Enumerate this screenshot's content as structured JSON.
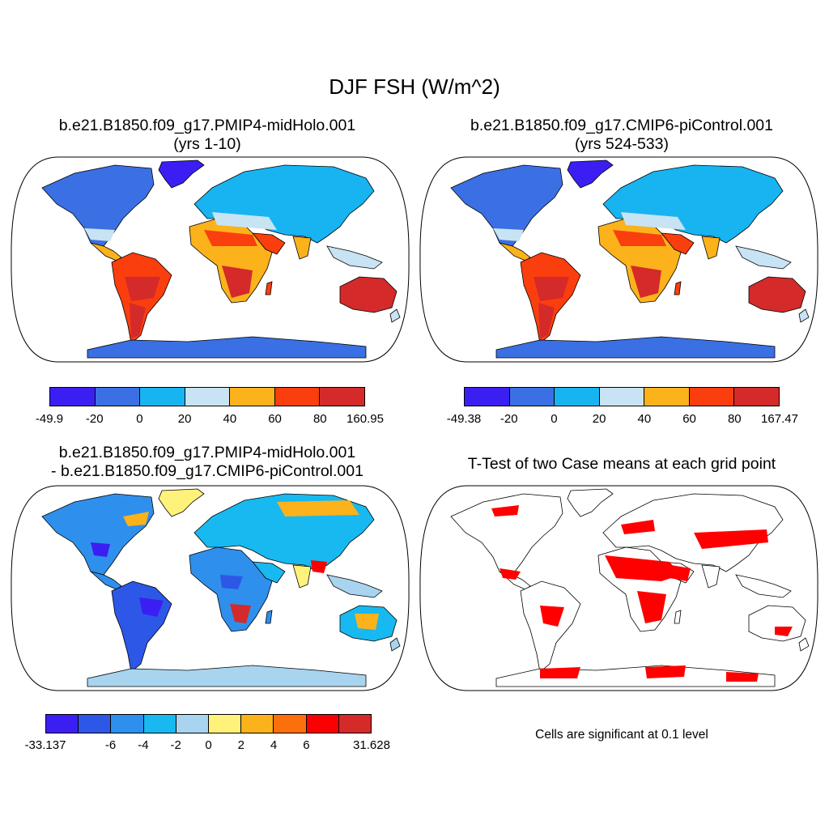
{
  "figure_title": "DJF FSH (W/m^2)",
  "panels": [
    {
      "title_line1": "b.e21.B1850.f09_g17.PMIP4-midHolo.001",
      "title_line2": "(yrs 1-10)",
      "colorbar": {
        "colors": [
          "#3b1ff2",
          "#3a70e4",
          "#17b4f1",
          "#c8e3f3",
          "#fbb21b",
          "#fb3e0d",
          "#d42a2a"
        ],
        "labels": [
          "-49.9",
          "-20",
          "0",
          "20",
          "40",
          "60",
          "80",
          "160.95"
        ]
      }
    },
    {
      "title_line1": "b.e21.B1850.f09_g17.CMIP6-piControl.001",
      "title_line2": "(yrs 524-533)",
      "colorbar": {
        "colors": [
          "#3b1ff2",
          "#3a70e4",
          "#17b4f1",
          "#c8e3f3",
          "#fbb21b",
          "#fb3e0d",
          "#d42a2a"
        ],
        "labels": [
          "-49.38",
          "-20",
          "0",
          "20",
          "40",
          "60",
          "80",
          "167.47"
        ]
      }
    },
    {
      "title_line1": "b.e21.B1850.f09_g17.PMIP4-midHolo.001",
      "title_line2": "- b.e21.B1850.f09_g17.CMIP6-piControl.001",
      "colorbar": {
        "colors": [
          "#3b1ff2",
          "#2d57e6",
          "#2f8fec",
          "#17b9f0",
          "#a8d4ef",
          "#fff27a",
          "#fbb21b",
          "#fb700d",
          "#fb0000",
          "#d42a2a"
        ],
        "labels": [
          "-33.137",
          "-6",
          "-4",
          "-2",
          "0",
          "2",
          "4",
          "6",
          "31.628"
        ]
      }
    },
    {
      "title_line1": "T-Test of two Case means at each grid point",
      "note": "Cells are significant at 0.1 level",
      "significance_color": "#ff0000"
    }
  ]
}
